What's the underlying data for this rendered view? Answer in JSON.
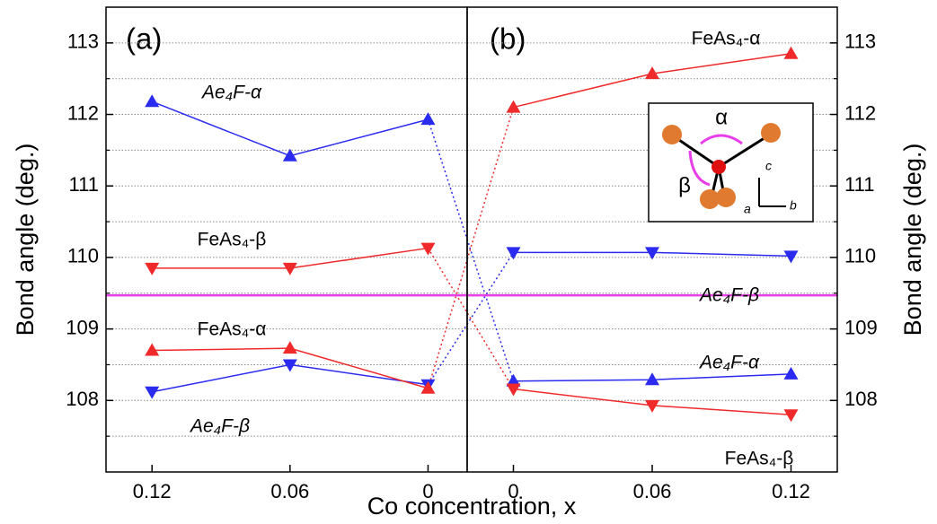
{
  "chart_data": [
    {
      "type": "line",
      "panel_label": "(a)",
      "ylabel": "Bond angle (deg.)",
      "x": [
        0.12,
        0.06,
        0
      ],
      "xlim": [
        0.14,
        -0.017
      ],
      "xticks": [
        0.12,
        0.06,
        0
      ],
      "ylim": [
        107,
        113.5
      ],
      "yticks": [
        108,
        109,
        110,
        111,
        112,
        113
      ],
      "minor_yticks": [
        107.5,
        108.5,
        109.5,
        110.5,
        111.5,
        112.5
      ],
      "grid": true,
      "reference_line": 109.47,
      "reference_color": "#e83ee8",
      "series": [
        {
          "name": "Ae₄F-α",
          "color": "#2a2af0",
          "marker": "up",
          "values": [
            112.18,
            111.42,
            111.93
          ]
        },
        {
          "name": "Ae₄F-β",
          "color": "#2a2af0",
          "marker": "down",
          "values": [
            108.12,
            108.5,
            108.22
          ]
        },
        {
          "name": "FeAs₄-α",
          "color": "#f02a2a",
          "marker": "up",
          "values": [
            108.7,
            108.73,
            108.17
          ]
        },
        {
          "name": "FeAs₄-β",
          "color": "#f02a2a",
          "marker": "down",
          "values": [
            109.85,
            109.85,
            110.13
          ]
        }
      ]
    },
    {
      "type": "line",
      "panel_label": "(b)",
      "ylabel": "Bond angle (deg.)",
      "x": [
        0,
        0.06,
        0.12
      ],
      "xlim": [
        -0.02,
        0.14
      ],
      "xticks": [
        0,
        0.06,
        0.12
      ],
      "ylim": [
        107,
        113.5
      ],
      "yticks": [
        108,
        109,
        110,
        111,
        112,
        113
      ],
      "minor_yticks": [
        107.5,
        108.5,
        109.5,
        110.5,
        111.5,
        112.5
      ],
      "grid": true,
      "reference_line": 109.47,
      "reference_color": "#e83ee8",
      "inset_labels": [
        "α",
        "β",
        "c",
        "a",
        "b"
      ],
      "series": [
        {
          "name": "Ae₄F-α",
          "color": "#2a2af0",
          "marker": "up",
          "values": [
            108.27,
            108.29,
            108.37
          ]
        },
        {
          "name": "Ae₄F-β",
          "color": "#2a2af0",
          "marker": "down",
          "values": [
            110.07,
            110.07,
            110.02
          ]
        },
        {
          "name": "FeAs₄-α",
          "color": "#f02a2a",
          "marker": "up",
          "values": [
            112.1,
            112.57,
            112.85
          ]
        },
        {
          "name": "FeAs₄-β",
          "color": "#f02a2a",
          "marker": "down",
          "values": [
            108.16,
            107.93,
            107.8
          ]
        }
      ]
    }
  ],
  "xlabel": "Co concentration, x"
}
